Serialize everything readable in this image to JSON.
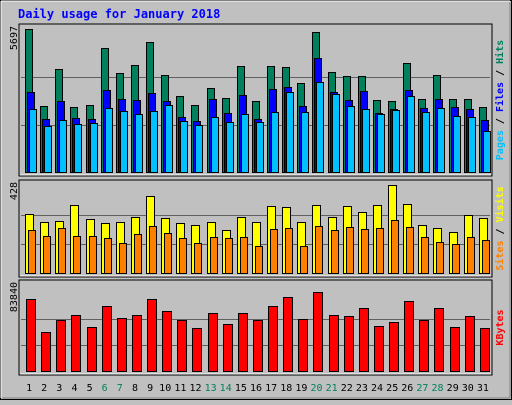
{
  "title": "Daily usage for January 2018",
  "colors": {
    "background": "#c0c0c0",
    "plot_background": "#c0c0c0",
    "title_text": "#0000ff",
    "hits": "#00805c",
    "files": "#0000ff",
    "pages": "#00c0ff",
    "visits": "#ffff00",
    "sites": "#ff8000",
    "kbytes": "#ff0000",
    "weekend_label": "#00805c",
    "weekday_label": "#000000"
  },
  "chart_data": [
    {
      "type": "bar",
      "panel": "hits-files-pages",
      "max_label": "5697",
      "ylim": [
        0,
        5697
      ],
      "legend": [
        {
          "name": "Pages",
          "color_key": "pages"
        },
        {
          "name": "Files",
          "color_key": "files"
        },
        {
          "name": "Hits",
          "color_key": "hits"
        }
      ],
      "categories": [
        "1",
        "2",
        "3",
        "4",
        "5",
        "6",
        "7",
        "8",
        "9",
        "10",
        "11",
        "12",
        "13",
        "14",
        "15",
        "16",
        "17",
        "18",
        "19",
        "20",
        "21",
        "22",
        "23",
        "24",
        "25",
        "26",
        "27",
        "28",
        "29",
        "30",
        "31"
      ],
      "series": [
        {
          "name": "Hits",
          "values": [
            5697,
            2650,
            4120,
            2630,
            2680,
            4930,
            3970,
            4290,
            5200,
            3870,
            3040,
            2680,
            3360,
            2980,
            4220,
            2850,
            4240,
            4210,
            3580,
            5580,
            3980,
            3830,
            3830,
            2880,
            2860,
            4360,
            2920,
            3860,
            2910,
            2910,
            2610
          ]
        },
        {
          "name": "Files",
          "values": [
            3220,
            2120,
            2830,
            2180,
            2140,
            3290,
            2920,
            2880,
            3160,
            2850,
            2220,
            2060,
            2940,
            2390,
            3070,
            2140,
            3310,
            3390,
            2670,
            4530,
            3200,
            2900,
            3230,
            2380,
            2530,
            3290,
            2580,
            2910,
            2610,
            2540,
            2080
          ]
        },
        {
          "name": "Pages",
          "values": [
            2520,
            1860,
            2080,
            1950,
            1960,
            2570,
            2440,
            2320,
            2450,
            2700,
            2040,
            1900,
            2220,
            2030,
            2350,
            2010,
            2420,
            3220,
            2420,
            3590,
            3120,
            2650,
            2520,
            2350,
            2500,
            3050,
            2420,
            2560,
            2240,
            2230,
            1650
          ]
        }
      ]
    },
    {
      "type": "bar",
      "panel": "visits-sites",
      "max_label": "428",
      "ylim": [
        0,
        428
      ],
      "legend": [
        {
          "name": "Sites",
          "color_key": "sites"
        },
        {
          "name": "Visits",
          "color_key": "visits"
        }
      ],
      "categories": [
        "1",
        "2",
        "3",
        "4",
        "5",
        "6",
        "7",
        "8",
        "9",
        "10",
        "11",
        "12",
        "13",
        "14",
        "15",
        "16",
        "17",
        "18",
        "19",
        "20",
        "21",
        "22",
        "23",
        "24",
        "25",
        "26",
        "27",
        "28",
        "29",
        "30",
        "31"
      ],
      "series": [
        {
          "name": "Visits",
          "values": [
            288,
            248,
            255,
            330,
            265,
            245,
            250,
            275,
            375,
            268,
            245,
            235,
            250,
            210,
            275,
            250,
            325,
            322,
            248,
            330,
            272,
            325,
            300,
            330,
            428,
            335,
            235,
            220,
            200,
            285,
            270
          ]
        },
        {
          "name": "Sites",
          "values": [
            210,
            185,
            220,
            185,
            185,
            175,
            150,
            190,
            230,
            195,
            175,
            150,
            180,
            175,
            180,
            135,
            215,
            220,
            135,
            230,
            210,
            225,
            215,
            220,
            260,
            225,
            180,
            155,
            145,
            180,
            165
          ]
        }
      ]
    },
    {
      "type": "bar",
      "panel": "kbytes",
      "max_label": "83840",
      "ylim": [
        0,
        83840
      ],
      "legend": [
        {
          "name": "KBytes",
          "color_key": "kbytes"
        }
      ],
      "categories": [
        "1",
        "2",
        "3",
        "4",
        "5",
        "6",
        "7",
        "8",
        "9",
        "10",
        "11",
        "12",
        "13",
        "14",
        "15",
        "16",
        "17",
        "18",
        "19",
        "20",
        "21",
        "22",
        "23",
        "24",
        "25",
        "26",
        "27",
        "28",
        "29",
        "30",
        "31"
      ],
      "series": [
        {
          "name": "KBytes",
          "values": [
            76100,
            42100,
            54400,
            60000,
            47000,
            69100,
            56600,
            59400,
            76100,
            63800,
            54400,
            46100,
            61500,
            50500,
            61500,
            54400,
            69100,
            78500,
            55300,
            83840,
            60000,
            58700,
            67300,
            48200,
            52500,
            74900,
            54400,
            67300,
            47000,
            58700,
            46100
          ]
        }
      ]
    }
  ],
  "x_labels": [
    {
      "text": "1",
      "weekend": false
    },
    {
      "text": "2",
      "weekend": false
    },
    {
      "text": "3",
      "weekend": false
    },
    {
      "text": "4",
      "weekend": false
    },
    {
      "text": "5",
      "weekend": false
    },
    {
      "text": "6",
      "weekend": true
    },
    {
      "text": "7",
      "weekend": true
    },
    {
      "text": "8",
      "weekend": false
    },
    {
      "text": "9",
      "weekend": false
    },
    {
      "text": "10",
      "weekend": false
    },
    {
      "text": "11",
      "weekend": false
    },
    {
      "text": "12",
      "weekend": false
    },
    {
      "text": "13",
      "weekend": true
    },
    {
      "text": "14",
      "weekend": true
    },
    {
      "text": "15",
      "weekend": false
    },
    {
      "text": "16",
      "weekend": false
    },
    {
      "text": "17",
      "weekend": false
    },
    {
      "text": "18",
      "weekend": false
    },
    {
      "text": "19",
      "weekend": false
    },
    {
      "text": "20",
      "weekend": true
    },
    {
      "text": "21",
      "weekend": true
    },
    {
      "text": "22",
      "weekend": false
    },
    {
      "text": "23",
      "weekend": false
    },
    {
      "text": "24",
      "weekend": false
    },
    {
      "text": "25",
      "weekend": false
    },
    {
      "text": "26",
      "weekend": false
    },
    {
      "text": "27",
      "weekend": true
    },
    {
      "text": "28",
      "weekend": true
    },
    {
      "text": "29",
      "weekend": false
    },
    {
      "text": "30",
      "weekend": false
    },
    {
      "text": "31",
      "weekend": false
    }
  ]
}
